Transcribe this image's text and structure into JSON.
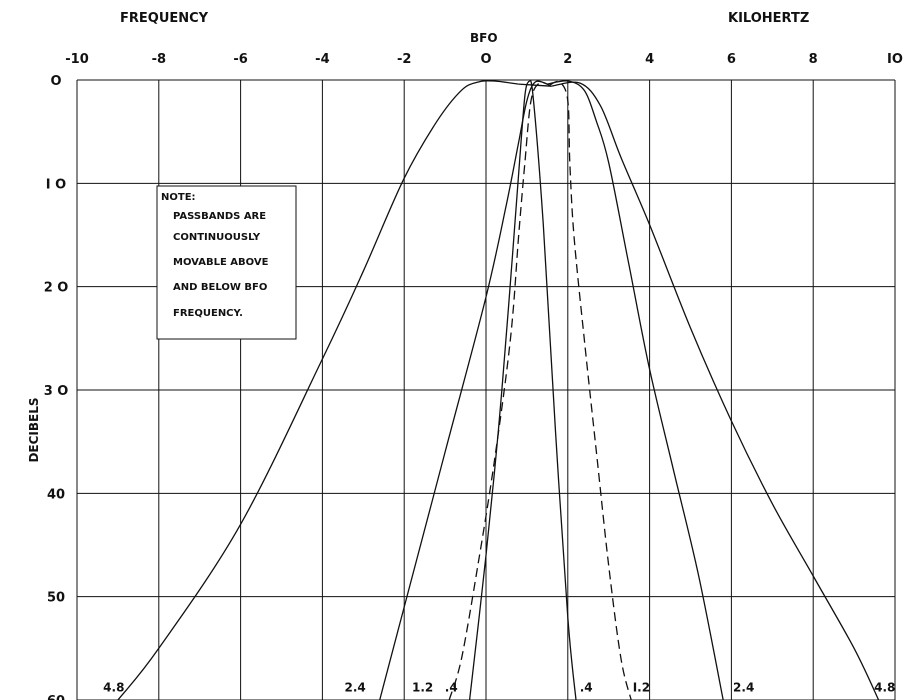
{
  "chart_data": {
    "type": "line",
    "title": "",
    "top_left_label": "FREQUENCY",
    "top_right_label": "KILOHERTZ",
    "bfo_label": "BFO",
    "ylabel": "DECIBELS",
    "xlabel": "",
    "xlim": [
      -10,
      10
    ],
    "ylim": [
      0,
      60
    ],
    "y_inverted": true,
    "grid": true,
    "x_ticks": [
      {
        "value": -10,
        "label": "-10"
      },
      {
        "value": -8,
        "label": "-8"
      },
      {
        "value": -6,
        "label": "-6"
      },
      {
        "value": -4,
        "label": "-4"
      },
      {
        "value": -2,
        "label": "-2"
      },
      {
        "value": 0,
        "label": "O"
      },
      {
        "value": 2,
        "label": "2"
      },
      {
        "value": 4,
        "label": "4"
      },
      {
        "value": 6,
        "label": "6"
      },
      {
        "value": 8,
        "label": "8"
      },
      {
        "value": 10,
        "label": "IO"
      }
    ],
    "y_ticks": [
      {
        "value": 0,
        "label": "O"
      },
      {
        "value": 10,
        "label": "I O"
      },
      {
        "value": 20,
        "label": "2 O"
      },
      {
        "value": 30,
        "label": "3 O"
      },
      {
        "value": 40,
        "label": "40"
      },
      {
        "value": 50,
        "label": "50"
      },
      {
        "value": 60,
        "label": "60"
      }
    ],
    "note": {
      "title": "NOTE:",
      "lines": [
        "PASSBANDS ARE",
        "CONTINUOUSLY",
        "MOVABLE ABOVE",
        "AND BELOW BFO",
        "FREQUENCY."
      ]
    },
    "series": [
      {
        "style": "solid",
        "label": "4.8",
        "left": [
          [
            -9.0,
            60
          ],
          [
            -8.0,
            55
          ],
          [
            -6.0,
            43
          ],
          [
            -4.0,
            27
          ],
          [
            -3.0,
            18.5
          ],
          [
            -2.0,
            9.5
          ],
          [
            -1.2,
            4
          ],
          [
            -0.6,
            1
          ],
          [
            -0.2,
            0.2
          ],
          [
            0.2,
            0.1
          ],
          [
            0.8,
            0.4
          ]
        ],
        "right": [
          [
            1.6,
            0.6
          ],
          [
            2.3,
            0.3
          ],
          [
            2.8,
            2.5
          ],
          [
            3.3,
            7.5
          ],
          [
            4.0,
            14
          ],
          [
            5.0,
            24
          ],
          [
            6.0,
            33
          ],
          [
            7.0,
            41
          ],
          [
            8.0,
            48
          ],
          [
            9.0,
            55
          ],
          [
            9.6,
            60
          ]
        ]
      },
      {
        "style": "solid",
        "label": "2.4",
        "left": [
          [
            -2.6,
            60
          ],
          [
            -2.0,
            51
          ],
          [
            -1.0,
            36
          ],
          [
            0.0,
            21
          ],
          [
            0.5,
            12
          ],
          [
            0.8,
            6
          ],
          [
            1.0,
            2
          ],
          [
            1.2,
            0.2
          ],
          [
            1.5,
            0.4
          ]
        ],
        "right": [
          [
            1.5,
            0.4
          ],
          [
            2.0,
            0.1
          ],
          [
            2.4,
            1
          ],
          [
            2.7,
            4
          ],
          [
            3.0,
            8
          ],
          [
            3.5,
            18
          ],
          [
            4.0,
            28
          ],
          [
            4.6,
            38
          ],
          [
            5.2,
            48
          ],
          [
            5.8,
            60
          ]
        ]
      },
      {
        "style": "dashed",
        "label": "1.2",
        "left": [
          [
            -0.9,
            60
          ],
          [
            -0.6,
            56
          ],
          [
            -0.2,
            47
          ],
          [
            0.2,
            37
          ],
          [
            0.6,
            25
          ],
          [
            0.8,
            15
          ],
          [
            0.95,
            8
          ],
          [
            1.1,
            2
          ],
          [
            1.3,
            0.3
          ],
          [
            1.55,
            0.5
          ]
        ],
        "right": [
          [
            1.55,
            0.5
          ],
          [
            1.8,
            0.2
          ],
          [
            2.0,
            2
          ],
          [
            2.05,
            8
          ],
          [
            2.15,
            15
          ],
          [
            2.4,
            25
          ],
          [
            2.7,
            36
          ],
          [
            3.0,
            47
          ],
          [
            3.3,
            56
          ],
          [
            3.55,
            60
          ]
        ]
      },
      {
        "style": "solid",
        "label": ".4",
        "left": [
          [
            -0.4,
            60
          ],
          [
            0.0,
            46
          ],
          [
            0.3,
            34
          ],
          [
            0.55,
            22
          ],
          [
            0.8,
            9
          ],
          [
            0.95,
            1.5
          ],
          [
            1.05,
            0.1
          ]
        ],
        "right": [
          [
            1.05,
            0.1
          ],
          [
            1.15,
            1.5
          ],
          [
            1.4,
            14
          ],
          [
            1.7,
            34
          ],
          [
            2.0,
            52
          ],
          [
            2.2,
            60
          ]
        ]
      }
    ],
    "curve_labels": [
      {
        "text": "4.8",
        "x": -9.1,
        "y": 59.2
      },
      {
        "text": "2.4",
        "x": -3.2,
        "y": 59.2
      },
      {
        "text": "1.2",
        "x": -1.55,
        "y": 59.2
      },
      {
        "text": ".4",
        "x": -0.85,
        "y": 59.2
      },
      {
        "text": ".4",
        "x": 2.45,
        "y": 59.2
      },
      {
        "text": "I.2",
        "x": 3.8,
        "y": 59.2
      },
      {
        "text": "2.4",
        "x": 6.3,
        "y": 59.2
      },
      {
        "text": "4.8",
        "x": 9.75,
        "y": 59.2
      }
    ]
  }
}
